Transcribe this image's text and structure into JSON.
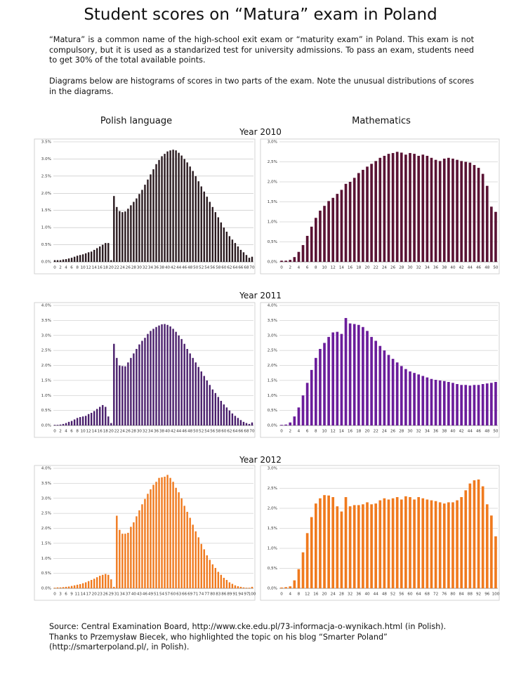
{
  "title": "Student scores on “Matura” exam in Poland",
  "intro": [
    "“Matura” is a common name of the high-school exit exam or “maturity exam” in Poland. This exam is not compulsory, but it is used as a standarized test for university admissions. To pass an exam, students need to get 30% of the total available points.",
    "Diagrams below are histograms of scores in two parts of the exam. Note the unusual distributions of scores in the diagrams."
  ],
  "columns": [
    "Polish language",
    "Mathematics"
  ],
  "rows": [
    "Year 2010",
    "Year 2011",
    "Year 2012"
  ],
  "source": "Source: Central Examination Board, http://www.cke.edu.pl/73-informacja-o-wynikach.html (in Polish). Thanks to Przemysław Biecek, who highlighted the topic on his blog “Smarter Poland” (http://smarterpoland.pl/, in Polish).",
  "chart_data": [
    {
      "type": "bar",
      "color": "#2a1a1f",
      "categories": [
        "0",
        null,
        "2",
        null,
        "4",
        null,
        "6",
        null,
        "8",
        null,
        "10",
        null,
        "12",
        null,
        "14",
        null,
        "16",
        null,
        "18",
        null,
        "20",
        null,
        "22",
        null,
        "24",
        null,
        "26",
        null,
        "28",
        null,
        "30",
        null,
        "32",
        null,
        "34",
        null,
        "36",
        null,
        "38",
        null,
        "40",
        null,
        "42",
        null,
        "44",
        null,
        "46",
        null,
        "48",
        null,
        "50",
        null,
        "52",
        null,
        "54",
        null,
        "56",
        null,
        "58",
        null,
        "60",
        null,
        "62",
        null,
        "64",
        null,
        "66",
        null,
        "68",
        null,
        "70"
      ],
      "values": [
        0.05,
        0.05,
        0.05,
        0.07,
        0.08,
        0.1,
        0.12,
        0.15,
        0.18,
        0.2,
        0.22,
        0.25,
        0.28,
        0.3,
        0.35,
        0.4,
        0.45,
        0.5,
        0.55,
        0.55,
        0.05,
        1.92,
        1.6,
        1.48,
        1.45,
        1.47,
        1.55,
        1.65,
        1.75,
        1.85,
        1.98,
        2.1,
        2.25,
        2.4,
        2.55,
        2.7,
        2.85,
        2.97,
        3.08,
        3.15,
        3.22,
        3.25,
        3.27,
        3.25,
        3.18,
        3.1,
        3.0,
        2.9,
        2.78,
        2.65,
        2.5,
        2.35,
        2.2,
        2.05,
        1.9,
        1.75,
        1.6,
        1.45,
        1.3,
        1.15,
        1.0,
        0.88,
        0.75,
        0.65,
        0.55,
        0.45,
        0.35,
        0.28,
        0.2,
        0.12,
        0.15
      ],
      "ylim": [
        0,
        3.5
      ],
      "yticks": [
        {
          "value": 0,
          "label": "0.0%"
        },
        {
          "value": 0.5,
          "label": "0.5%"
        },
        {
          "value": 1,
          "label": "1.0%"
        },
        {
          "value": 1.5,
          "label": "1.5%"
        },
        {
          "value": 2,
          "label": "2.0%"
        },
        {
          "value": 2.5,
          "label": "2.5%"
        },
        {
          "value": 3,
          "label": "3.0%"
        },
        {
          "value": 3.5,
          "label": "3.5%"
        }
      ],
      "grid": true
    },
    {
      "type": "bar",
      "color": "#5a1334",
      "categories": [
        "0",
        null,
        "2",
        null,
        "4",
        null,
        "6",
        null,
        "8",
        null,
        "10",
        null,
        "12",
        null,
        "14",
        null,
        "16",
        null,
        "18",
        null,
        "20",
        null,
        "22",
        null,
        "24",
        null,
        "26",
        null,
        "28",
        null,
        "30",
        null,
        "32",
        null,
        "34",
        null,
        "36",
        null,
        "38",
        null,
        "40",
        null,
        "42",
        null,
        "44",
        null,
        "46",
        null,
        "48",
        null,
        "50"
      ],
      "values": [
        0.03,
        0.03,
        0.05,
        0.12,
        0.25,
        0.42,
        0.65,
        0.88,
        1.1,
        1.28,
        1.4,
        1.52,
        1.6,
        1.7,
        1.8,
        1.95,
        2.0,
        2.1,
        2.22,
        2.3,
        2.38,
        2.45,
        2.52,
        2.6,
        2.65,
        2.7,
        2.72,
        2.75,
        2.73,
        2.68,
        2.72,
        2.7,
        2.65,
        2.68,
        2.65,
        2.6,
        2.55,
        2.52,
        2.58,
        2.6,
        2.58,
        2.55,
        2.52,
        2.5,
        2.48,
        2.42,
        2.35,
        2.2,
        1.9,
        1.38,
        1.25
      ],
      "ylim": [
        0,
        3.0
      ],
      "yticks": [
        {
          "value": 0,
          "label": "0,0%"
        },
        {
          "value": 0.5,
          "label": "0,5%"
        },
        {
          "value": 1,
          "label": "1,0%"
        },
        {
          "value": 1.5,
          "label": "1,5%"
        },
        {
          "value": 2,
          "label": "2,0%"
        },
        {
          "value": 2.5,
          "label": "2,5%"
        },
        {
          "value": 3,
          "label": "3,0%"
        }
      ],
      "grid": true
    },
    {
      "type": "bar",
      "color": "#4a1f6c",
      "categories": [
        "0",
        null,
        "2",
        null,
        "4",
        null,
        "6",
        null,
        "8",
        null,
        "10",
        null,
        "12",
        null,
        "14",
        null,
        "16",
        null,
        "18",
        null,
        "20",
        null,
        "22",
        null,
        "24",
        null,
        "26",
        null,
        "28",
        null,
        "30",
        null,
        "32",
        null,
        "34",
        null,
        "36",
        null,
        "38",
        null,
        "40",
        null,
        "42",
        null,
        "44",
        null,
        "46",
        null,
        "48",
        null,
        "50",
        null,
        "52",
        null,
        "54",
        null,
        "56",
        null,
        "58",
        null,
        "60",
        null,
        "62",
        null,
        "64",
        null,
        "66",
        null,
        "68",
        null,
        "70"
      ],
      "values": [
        0.02,
        0.02,
        0.03,
        0.05,
        0.08,
        0.12,
        0.15,
        0.2,
        0.25,
        0.28,
        0.3,
        0.32,
        0.38,
        0.42,
        0.48,
        0.55,
        0.62,
        0.68,
        0.62,
        0.3,
        0.08,
        2.72,
        2.25,
        2.0,
        1.98,
        1.97,
        2.1,
        2.25,
        2.4,
        2.55,
        2.7,
        2.82,
        2.92,
        3.05,
        3.15,
        3.22,
        3.28,
        3.33,
        3.37,
        3.38,
        3.35,
        3.3,
        3.22,
        3.12,
        3.0,
        2.88,
        2.72,
        2.55,
        2.4,
        2.25,
        2.1,
        1.95,
        1.8,
        1.65,
        1.5,
        1.35,
        1.2,
        1.08,
        0.95,
        0.82,
        0.7,
        0.6,
        0.5,
        0.4,
        0.32,
        0.25,
        0.18,
        0.12,
        0.08,
        0.05,
        0.1
      ],
      "ylim": [
        0,
        4.0
      ],
      "yticks": [
        {
          "value": 0,
          "label": "0.0%"
        },
        {
          "value": 0.5,
          "label": "0.5%"
        },
        {
          "value": 1,
          "label": "1.0%"
        },
        {
          "value": 1.5,
          "label": "1.5%"
        },
        {
          "value": 2,
          "label": "2.0%"
        },
        {
          "value": 2.5,
          "label": "2.5%"
        },
        {
          "value": 3,
          "label": "3.0%"
        },
        {
          "value": 3.5,
          "label": "3.5%"
        },
        {
          "value": 4,
          "label": "4.0%"
        }
      ],
      "grid": true
    },
    {
      "type": "bar",
      "color": "#6b1d9b",
      "categories": [
        "0",
        null,
        "2",
        null,
        "4",
        null,
        "6",
        null,
        "8",
        null,
        "10",
        null,
        "12",
        null,
        "14",
        null,
        "16",
        null,
        "18",
        null,
        "20",
        null,
        "22",
        null,
        "24",
        null,
        "26",
        null,
        "28",
        null,
        "30",
        null,
        "32",
        null,
        "34",
        null,
        "36",
        null,
        "38",
        null,
        "40",
        null,
        "42",
        null,
        "44",
        null,
        "46",
        null,
        "48",
        null,
        "50"
      ],
      "values": [
        0.02,
        0.03,
        0.1,
        0.3,
        0.6,
        1.0,
        1.42,
        1.85,
        2.25,
        2.55,
        2.75,
        2.95,
        3.1,
        3.12,
        3.05,
        3.58,
        3.4,
        3.38,
        3.35,
        3.28,
        3.15,
        2.95,
        2.82,
        2.65,
        2.5,
        2.35,
        2.22,
        2.1,
        1.98,
        1.88,
        1.8,
        1.75,
        1.7,
        1.65,
        1.6,
        1.55,
        1.52,
        1.5,
        1.48,
        1.45,
        1.42,
        1.38,
        1.35,
        1.35,
        1.33,
        1.35,
        1.35,
        1.38,
        1.4,
        1.42,
        1.45
      ],
      "ylim": [
        0,
        4.0
      ],
      "yticks": [
        {
          "value": 0,
          "label": "0,0%"
        },
        {
          "value": 0.5,
          "label": "0,5%"
        },
        {
          "value": 1,
          "label": "1,0%"
        },
        {
          "value": 1.5,
          "label": "1,5%"
        },
        {
          "value": 2,
          "label": "2,0%"
        },
        {
          "value": 2.5,
          "label": "2,5%"
        },
        {
          "value": 3,
          "label": "3,0%"
        },
        {
          "value": 3.5,
          "label": "3,5%"
        },
        {
          "value": 4,
          "label": "4,0%"
        }
      ],
      "grid": true
    },
    {
      "type": "bar",
      "color": "#f07a1e",
      "categories": [
        "0",
        null,
        "3",
        null,
        "6",
        null,
        "9",
        null,
        "11",
        null,
        "14",
        null,
        "17",
        null,
        "20",
        null,
        "23",
        null,
        "26",
        null,
        "29",
        null,
        "31",
        null,
        "34",
        null,
        "37",
        null,
        "40",
        null,
        "43",
        null,
        "46",
        null,
        "49",
        null,
        "51",
        null,
        "54",
        null,
        "57",
        null,
        "60",
        null,
        "63",
        null,
        "66",
        null,
        "69",
        null,
        "71",
        null,
        "74",
        null,
        "77",
        null,
        "80",
        null,
        "83",
        null,
        "86",
        null,
        "89",
        null,
        "91",
        null,
        "94",
        null,
        "97",
        null,
        "100"
      ],
      "values": [
        0.02,
        0.03,
        0.03,
        0.04,
        0.05,
        0.06,
        0.08,
        0.1,
        0.12,
        0.14,
        0.17,
        0.2,
        0.24,
        0.28,
        0.32,
        0.37,
        0.42,
        0.45,
        0.48,
        0.45,
        0.3,
        0.05,
        2.42,
        1.95,
        1.82,
        1.82,
        1.85,
        2.05,
        2.2,
        2.4,
        2.6,
        2.8,
        2.98,
        3.15,
        3.3,
        3.45,
        3.55,
        3.68,
        3.7,
        3.72,
        3.78,
        3.68,
        3.55,
        3.35,
        3.2,
        3.0,
        2.75,
        2.55,
        2.35,
        2.12,
        1.9,
        1.7,
        1.48,
        1.3,
        1.1,
        0.95,
        0.8,
        0.68,
        0.55,
        0.45,
        0.35,
        0.28,
        0.2,
        0.15,
        0.1,
        0.07,
        0.05,
        0.03,
        0.02,
        0.02,
        0.05
      ],
      "ylim": [
        0,
        4.0
      ],
      "yticks": [
        {
          "value": 0,
          "label": "0.0%"
        },
        {
          "value": 0.5,
          "label": "0.5%"
        },
        {
          "value": 1,
          "label": "1.0%"
        },
        {
          "value": 1.5,
          "label": "1.5%"
        },
        {
          "value": 2,
          "label": "2.0%"
        },
        {
          "value": 2.5,
          "label": "2.5%"
        },
        {
          "value": 3,
          "label": "3.0%"
        },
        {
          "value": 3.5,
          "label": "3.5%"
        },
        {
          "value": 4,
          "label": "4.0%"
        }
      ],
      "grid": true
    },
    {
      "type": "bar",
      "color": "#f07a1e",
      "categories": [
        "0",
        null,
        "4",
        null,
        "8",
        null,
        "12",
        null,
        "16",
        null,
        "20",
        null,
        "24",
        null,
        "28",
        null,
        "32",
        null,
        "36",
        null,
        "40",
        null,
        "44",
        null,
        "48",
        null,
        "52",
        null,
        "56",
        null,
        "60",
        null,
        "64",
        null,
        "68",
        null,
        "72",
        null,
        "76",
        null,
        "80",
        null,
        "84",
        null,
        "88",
        null,
        "92",
        null,
        "96",
        null,
        "100"
      ],
      "values": [
        0.02,
        0.03,
        0.05,
        0.2,
        0.48,
        0.9,
        1.38,
        1.78,
        2.12,
        2.25,
        2.33,
        2.32,
        2.28,
        2.05,
        1.92,
        2.28,
        2.05,
        2.08,
        2.08,
        2.1,
        2.15,
        2.1,
        2.12,
        2.2,
        2.25,
        2.22,
        2.25,
        2.28,
        2.22,
        2.3,
        2.28,
        2.22,
        2.28,
        2.25,
        2.22,
        2.2,
        2.18,
        2.15,
        2.12,
        2.15,
        2.15,
        2.2,
        2.28,
        2.45,
        2.62,
        2.7,
        2.72,
        2.55,
        2.1,
        1.82,
        1.3
      ],
      "ylim": [
        0,
        3.0
      ],
      "yticks": [
        {
          "value": 0,
          "label": "0,0%"
        },
        {
          "value": 0.5,
          "label": "0,5%"
        },
        {
          "value": 1,
          "label": "1,0%"
        },
        {
          "value": 1.5,
          "label": "1,5%"
        },
        {
          "value": 2,
          "label": "2,0%"
        },
        {
          "value": 2.5,
          "label": "2,5%"
        },
        {
          "value": 3,
          "label": "3,0%"
        }
      ],
      "grid": true
    }
  ]
}
